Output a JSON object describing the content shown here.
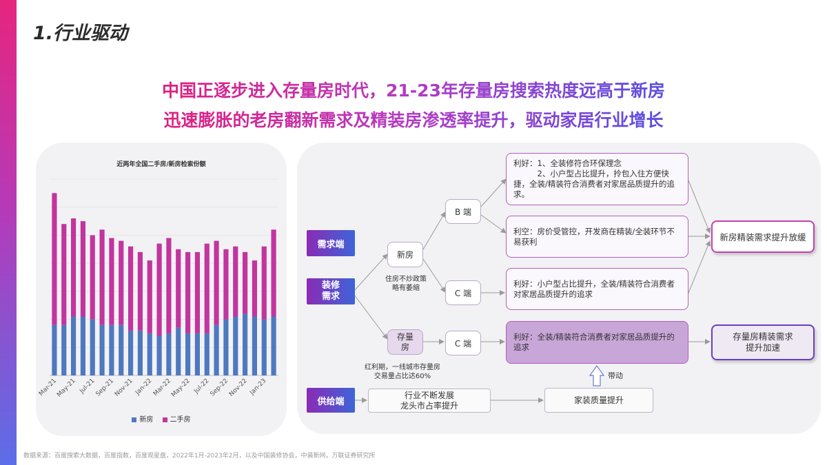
{
  "title": "1.行业驱动",
  "headline": {
    "line1": "中国正逐步进入存量房时代，21-23年存量房搜索热度远高于新房",
    "line2": "迅速膨胀的老房翻新需求及精装房渗透率提升，驱动家居行业增长"
  },
  "chart_data": {
    "type": "bar",
    "stacked": true,
    "title": "近两年全国二手房/新房检索份额",
    "categories": [
      "Mar-21",
      "Apr-21",
      "May-21",
      "Jun-21",
      "Jul-21",
      "Aug-21",
      "Sep-21",
      "Oct-21",
      "Nov-21",
      "Dec-21",
      "Jan-22",
      "Feb-22",
      "Mar-22",
      "Apr-22",
      "May-22",
      "Jun-22",
      "Jul-22",
      "Aug-22",
      "Sep-22",
      "Oct-22",
      "Nov-22",
      "Dec-22",
      "Jan-23",
      "Feb-23"
    ],
    "tick_labels": [
      "Mar-21",
      "May-21",
      "Jul-21",
      "Sep-21",
      "Nov-21",
      "Jan-22",
      "Mar-22",
      "May-22",
      "Jul-22",
      "Sep-22",
      "Nov-22",
      "Jan-23"
    ],
    "series": [
      {
        "name": "新房",
        "color": "#4e79c0",
        "values": [
          18,
          18,
          21,
          21,
          20,
          18,
          18,
          18,
          16,
          16,
          15,
          14,
          15,
          17,
          15,
          15,
          15,
          18,
          20,
          21,
          22,
          21,
          20,
          21
        ]
      },
      {
        "name": "二手房",
        "color": "#c2359e",
        "values": [
          47,
          36,
          35,
          34,
          30,
          34,
          31,
          30,
          30,
          28,
          26,
          33,
          34,
          28,
          29,
          29,
          32,
          30,
          25,
          25,
          22,
          20,
          26,
          31
        ]
      }
    ],
    "ylim": [
      0,
      70
    ],
    "grid": true,
    "legend_position": "bottom"
  },
  "flow": {
    "demand_label": "需求端",
    "decoration_label": "装修\n需求",
    "supply_label": "供给端",
    "new_house": "新房",
    "existing_house": "存量\n房",
    "b_end_1": "B 端",
    "c_end_1": "C 端",
    "c_end_2": "C 端",
    "note_policy": "住房不炒政策\n略有萎缩",
    "note_dividend": "红利期，一线城市存量房\n交易量占比达60%",
    "box_b_good": "利好：1、全装修符合环保理念\n　　　2、小户型占比提升，拎包入住方便快捷，全装/精装符合消费者对家居品质提升的追求。",
    "box_b_bad": "利空：房价受管控，开发商在精装/全装环节不易获利",
    "box_c_good": "利好：小户型占比提升，全装/精装符合消费者对家居品质提升的追求",
    "box_c2_good": "利好：全装/精装符合消费者对家居品质提升的追求",
    "result_new": "新房精装需求提升放缓",
    "result_existing": "存量房精装需求\n提升加速",
    "supply_industry": "行业不断发展\n龙头市占率提升",
    "supply_quality": "家装质量提升",
    "drive_label": "带动"
  },
  "source": "数据来源：百度搜索大数据，百度指数，百度观星盘，2022年1月-2023年2月，以及中国装修协会，中装新网，万联证券研究所"
}
